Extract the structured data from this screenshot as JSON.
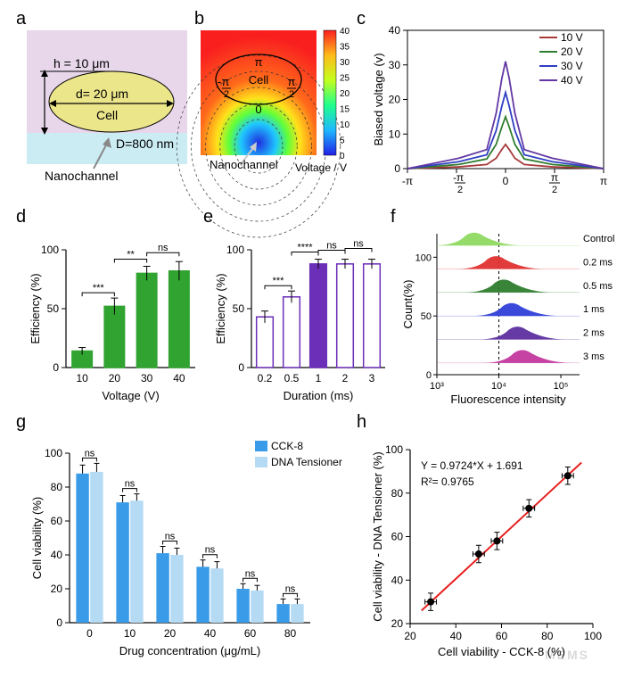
{
  "labels": {
    "a": "a",
    "b": "b",
    "c": "c",
    "d": "d",
    "e": "e",
    "f": "f",
    "g": "g",
    "h": "h"
  },
  "panel_a": {
    "bg": "#e8d7eb",
    "cell_fill": "#ece68b",
    "channel_fill": "#ccecf4",
    "h_label": "h = 10 μm",
    "d_label": "d= 20 μm",
    "cell_label": "Cell",
    "D_label": "D=800 nm",
    "nano_label": "Nanochannel",
    "line_color": "#000",
    "label_fontsize": 14
  },
  "panel_b": {
    "colorbar_title": "Voltage / V",
    "colorbar_max": 40,
    "colorbar_min": 0,
    "cell_label": "Cell",
    "nano_label": "Nanochannel",
    "angle_labels": [
      "-π/2",
      "0",
      "π/2",
      "π"
    ],
    "stops": [
      {
        "p": 0,
        "c": "#f91f1f"
      },
      {
        "p": 0.2,
        "c": "#ffbb1b"
      },
      {
        "p": 0.4,
        "c": "#c3ff1f"
      },
      {
        "p": 0.6,
        "c": "#1fff8d"
      },
      {
        "p": 0.8,
        "c": "#1fb8ff"
      },
      {
        "p": 1,
        "c": "#2121e6"
      }
    ],
    "cb_ticks": [
      40,
      35,
      30,
      25,
      20,
      15,
      10,
      5,
      0
    ]
  },
  "panel_c": {
    "type": "line",
    "xlabel": "",
    "ylabel": "Biased voltage (v)",
    "xlim": [
      -3.1416,
      3.1416
    ],
    "ylim": [
      0,
      40
    ],
    "xtick_pos": [
      -3.1416,
      -1.5708,
      0,
      1.5708,
      3.1416
    ],
    "xtick_lab": [
      "-π",
      "-π/2",
      "0",
      "π/2",
      "π"
    ],
    "ytick_pos": [
      0,
      10,
      20,
      30,
      40
    ],
    "series": [
      {
        "name": "10 V",
        "color": "#a83a3a",
        "pts": [
          [
            -3.1416,
            0
          ],
          [
            -1.5,
            0.5
          ],
          [
            -0.6,
            1.2
          ],
          [
            -0.3,
            3
          ],
          [
            -0.12,
            5.5
          ],
          [
            0,
            7
          ],
          [
            0.12,
            5.5
          ],
          [
            0.3,
            3
          ],
          [
            0.6,
            1.2
          ],
          [
            1.5,
            0.5
          ],
          [
            3.1416,
            0
          ]
        ]
      },
      {
        "name": "20 V",
        "color": "#2f7d2f",
        "pts": [
          [
            -3.1416,
            0
          ],
          [
            -1.5,
            1.2
          ],
          [
            -0.6,
            2.8
          ],
          [
            -0.3,
            7
          ],
          [
            -0.12,
            12
          ],
          [
            0,
            15
          ],
          [
            0.12,
            12
          ],
          [
            0.3,
            7
          ],
          [
            0.6,
            2.8
          ],
          [
            1.5,
            1.2
          ],
          [
            3.1416,
            0
          ]
        ]
      },
      {
        "name": "30 V",
        "color": "#2f3fc3",
        "pts": [
          [
            -3.1416,
            0
          ],
          [
            -1.5,
            2
          ],
          [
            -0.6,
            4
          ],
          [
            -0.3,
            11
          ],
          [
            -0.12,
            18
          ],
          [
            0,
            22
          ],
          [
            0.12,
            18
          ],
          [
            0.3,
            11
          ],
          [
            0.6,
            4
          ],
          [
            1.5,
            2
          ],
          [
            3.1416,
            0
          ]
        ]
      },
      {
        "name": "40 V",
        "color": "#6237a3",
        "pts": [
          [
            -3.1416,
            0
          ],
          [
            -1.5,
            3
          ],
          [
            -0.6,
            5.5
          ],
          [
            -0.3,
            16
          ],
          [
            -0.12,
            26
          ],
          [
            0,
            31
          ],
          [
            0.12,
            26
          ],
          [
            0.3,
            16
          ],
          [
            0.6,
            5.5
          ],
          [
            1.5,
            3
          ],
          [
            3.1416,
            0
          ]
        ]
      }
    ],
    "label_fontsize": 13,
    "tick_fontsize": 12
  },
  "panel_d": {
    "type": "bar",
    "xlabel": "Voltage (V)",
    "ylabel": "Efficiency (%)",
    "categories": [
      "10",
      "20",
      "30",
      "40"
    ],
    "values": [
      14,
      52,
      80,
      82
    ],
    "errs": [
      3,
      7,
      6,
      8
    ],
    "fill_idx": 2,
    "bar_fill": "#31a331",
    "bar_stroke": "#31a331",
    "highlight_fill": "#31a331",
    "ylim": [
      0,
      100
    ],
    "ytick_step": 50,
    "sig": [
      [
        "10",
        "20",
        "***"
      ],
      [
        "20",
        "30",
        "**"
      ],
      [
        "30",
        "40",
        "ns"
      ]
    ],
    "label_fontsize": 13
  },
  "panel_e": {
    "type": "bar",
    "xlabel": "Duration (ms)",
    "ylabel": "Efficiency (%)",
    "categories": [
      "0.2",
      "0.5",
      "1",
      "2",
      "3"
    ],
    "values": [
      43,
      60,
      88,
      88,
      88
    ],
    "errs": [
      5,
      5,
      4,
      4,
      4
    ],
    "fill_idx": 2,
    "bar_fill": "#ffffff",
    "bar_stroke": "#6b2fb8",
    "highlight_fill": "#6b2fb8",
    "ylim": [
      0,
      100
    ],
    "ytick_step": 50,
    "sig": [
      [
        "0.2",
        "0.5",
        "***"
      ],
      [
        "0.5",
        "1",
        "****"
      ],
      [
        "1",
        "2",
        "ns"
      ],
      [
        "2",
        "3",
        "ns"
      ]
    ],
    "label_fontsize": 13
  },
  "panel_f": {
    "type": "histogram_ridge",
    "xlabel": "Fluorescence intensity",
    "ylabel": "Count(%)",
    "xlog": true,
    "xlim": [
      1000,
      200000
    ],
    "ylim": [
      0,
      120
    ],
    "xtick_pos": [
      1000,
      10000,
      100000
    ],
    "xtick_lab": [
      "10³",
      "10⁴",
      "10⁵"
    ],
    "ytick_pos": [
      0,
      50,
      100
    ],
    "dash_x": 10000,
    "ridges": [
      {
        "label": "Control",
        "color": "#8fd962",
        "peak": 4000,
        "y": 110
      },
      {
        "label": "0.2 ms",
        "color": "#e03030",
        "peak": 9000,
        "y": 90
      },
      {
        "label": "0.5 ms",
        "color": "#2f7d2f",
        "peak": 12000,
        "y": 70
      },
      {
        "label": "1 ms",
        "color": "#2f3fd8",
        "peak": 16000,
        "y": 50
      },
      {
        "label": "2 ms",
        "color": "#5d2f9f",
        "peak": 20000,
        "y": 30
      },
      {
        "label": "3 ms",
        "color": "#c3399f",
        "peak": 24000,
        "y": 10
      }
    ],
    "label_fontsize": 13
  },
  "panel_g": {
    "type": "grouped_bar",
    "xlabel": "Drug concentration (μg/mL)",
    "ylabel": "Cell viability (%)",
    "legend": [
      "CCK-8",
      "DNA Tensioner"
    ],
    "colors": [
      "#3a9ce8",
      "#b5daf4"
    ],
    "categories": [
      "0",
      "10",
      "20",
      "40",
      "60",
      "80"
    ],
    "series1": [
      88,
      71,
      41,
      33,
      20,
      11
    ],
    "series2": [
      89,
      72,
      40,
      32,
      19,
      11
    ],
    "errs1": [
      5,
      4,
      4,
      4,
      3,
      3
    ],
    "errs2": [
      5,
      4,
      4,
      4,
      3,
      3
    ],
    "sig": [
      "ns",
      "ns",
      "ns",
      "ns",
      "ns",
      "ns"
    ],
    "ylim": [
      0,
      100
    ],
    "ytick_step": 20,
    "label_fontsize": 13
  },
  "panel_h": {
    "type": "scatter_fit",
    "xlabel": "Cell viability - CCK-8 (%)",
    "ylabel": "Cell viability - DNA Tensioner (%)",
    "xlim": [
      20,
      100
    ],
    "ylim": [
      20,
      100
    ],
    "tick_step": 20,
    "points": [
      [
        29,
        30
      ],
      [
        50,
        52
      ],
      [
        58,
        58
      ],
      [
        72,
        73
      ],
      [
        89,
        88
      ]
    ],
    "xerr": 2.5,
    "yerr": 4,
    "fit_color": "#e81e1e",
    "marker_color": "#000",
    "eq": "Y = 0.9724*X + 1.691",
    "r2": "R²= 0.9765",
    "slope": 0.9724,
    "intercept": 1.691,
    "label_fontsize": 13
  }
}
